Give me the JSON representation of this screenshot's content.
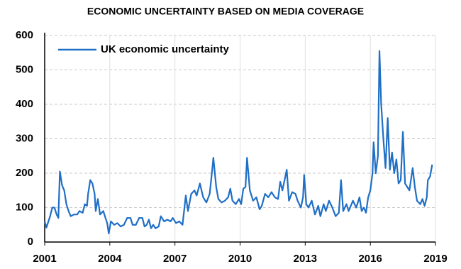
{
  "chart_data": {
    "type": "line",
    "title": "ECONOMIC UNCERTAINTY BASED ON MEDIA COVERAGE",
    "x": [
      2001.0,
      2001.08,
      2001.25,
      2001.35,
      2001.45,
      2001.55,
      2001.63,
      2001.7,
      2001.8,
      2001.9,
      2002.0,
      2002.1,
      2002.2,
      2002.35,
      2002.5,
      2002.6,
      2002.75,
      2002.85,
      2002.95,
      2003.0,
      2003.1,
      2003.2,
      2003.3,
      2003.35,
      2003.45,
      2003.55,
      2003.7,
      2003.8,
      2003.88,
      2003.95,
      2004.05,
      2004.2,
      2004.35,
      2004.5,
      2004.65,
      2004.8,
      2004.95,
      2005.05,
      2005.2,
      2005.35,
      2005.5,
      2005.6,
      2005.7,
      2005.8,
      2005.9,
      2006.0,
      2006.1,
      2006.25,
      2006.35,
      2006.5,
      2006.65,
      2006.8,
      2006.9,
      2007.05,
      2007.2,
      2007.35,
      2007.5,
      2007.6,
      2007.75,
      2007.9,
      2008.0,
      2008.15,
      2008.3,
      2008.45,
      2008.6,
      2008.7,
      2008.77,
      2008.9,
      2009.0,
      2009.15,
      2009.3,
      2009.45,
      2009.55,
      2009.65,
      2009.8,
      2009.95,
      2010.05,
      2010.15,
      2010.25,
      2010.32,
      2010.45,
      2010.6,
      2010.75,
      2010.9,
      2011.0,
      2011.15,
      2011.3,
      2011.45,
      2011.6,
      2011.75,
      2011.85,
      2011.95,
      2012.05,
      2012.15,
      2012.25,
      2012.4,
      2012.55,
      2012.65,
      2012.8,
      2012.9,
      2012.95,
      2013.05,
      2013.15,
      2013.3,
      2013.45,
      2013.6,
      2013.7,
      2013.85,
      2013.95,
      2014.1,
      2014.25,
      2014.4,
      2014.55,
      2014.65,
      2014.75,
      2014.9,
      2015.0,
      2015.2,
      2015.35,
      2015.5,
      2015.6,
      2015.7,
      2015.8,
      2015.9,
      2016.0,
      2016.1,
      2016.15,
      2016.25,
      2016.35,
      2016.42,
      2016.5,
      2016.6,
      2016.7,
      2016.8,
      2016.9,
      2017.0,
      2017.1,
      2017.2,
      2017.3,
      2017.4,
      2017.5,
      2017.6,
      2017.7,
      2017.8,
      2017.95,
      2018.05,
      2018.15,
      2018.3,
      2018.4,
      2018.5,
      2018.6,
      2018.65,
      2018.75,
      2018.85
    ],
    "series": [
      {
        "name": "UK economic uncertainty",
        "color": "#1f6fc5",
        "values": [
          60,
          42,
          75,
          100,
          100,
          80,
          70,
          205,
          165,
          150,
          110,
          90,
          75,
          80,
          80,
          90,
          85,
          110,
          105,
          140,
          180,
          170,
          140,
          90,
          125,
          80,
          90,
          70,
          55,
          25,
          60,
          50,
          55,
          45,
          50,
          70,
          70,
          50,
          50,
          70,
          70,
          45,
          50,
          65,
          40,
          50,
          40,
          45,
          75,
          60,
          65,
          60,
          70,
          55,
          60,
          50,
          135,
          90,
          140,
          150,
          135,
          170,
          130,
          115,
          140,
          200,
          245,
          160,
          125,
          115,
          120,
          130,
          155,
          120,
          110,
          125,
          110,
          155,
          160,
          245,
          150,
          120,
          130,
          95,
          105,
          140,
          130,
          145,
          130,
          125,
          175,
          150,
          180,
          210,
          120,
          145,
          140,
          120,
          100,
          130,
          195,
          110,
          100,
          120,
          80,
          105,
          75,
          110,
          90,
          120,
          100,
          75,
          85,
          180,
          90,
          110,
          90,
          120,
          100,
          130,
          90,
          100,
          85,
          130,
          150,
          200,
          290,
          200,
          250,
          555,
          400,
          300,
          215,
          360,
          210,
          260,
          200,
          240,
          170,
          180,
          320,
          170,
          160,
          150,
          215,
          160,
          120,
          110,
          125,
          105,
          130,
          180,
          190,
          225
        ]
      }
    ],
    "xlim": [
      2001,
      2019
    ],
    "xticks": [
      2001,
      2004,
      2007,
      2010,
      2013,
      2016,
      2019
    ],
    "ylim": [
      0,
      600
    ],
    "yticks": [
      0,
      100,
      200,
      300,
      400,
      500,
      600
    ],
    "grid": true,
    "legend": "top-left"
  }
}
